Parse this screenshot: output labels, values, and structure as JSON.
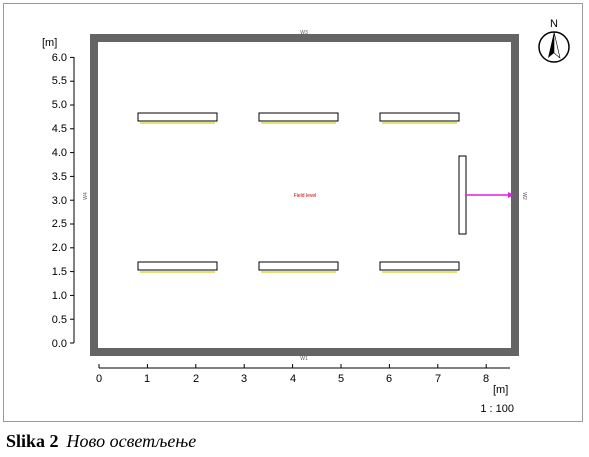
{
  "diagram": {
    "y_axis": {
      "unit": "[m]",
      "ticks": [
        "0.0",
        "0.5",
        "1.0",
        "1.5",
        "2.0",
        "2.5",
        "3.0",
        "3.5",
        "4.0",
        "4.5",
        "5.0",
        "5.5",
        "6.0"
      ]
    },
    "x_axis": {
      "unit": "[m]",
      "ticks": [
        "0",
        "1",
        "2",
        "3",
        "4",
        "5",
        "6",
        "7",
        "8"
      ]
    },
    "scale": "1 : 100",
    "north_label": "N",
    "walls": {
      "top": "W3",
      "right": "W2",
      "bottom": "W1",
      "left": "W4"
    },
    "field_label": "Field level",
    "colors": {
      "wall": "#646464",
      "luminaire_shadow": "#d8d840",
      "arrow": "#e020e0",
      "field_label": "#c00000"
    }
  },
  "caption": {
    "number": "Slika 2",
    "text": "Ново осветљење"
  }
}
